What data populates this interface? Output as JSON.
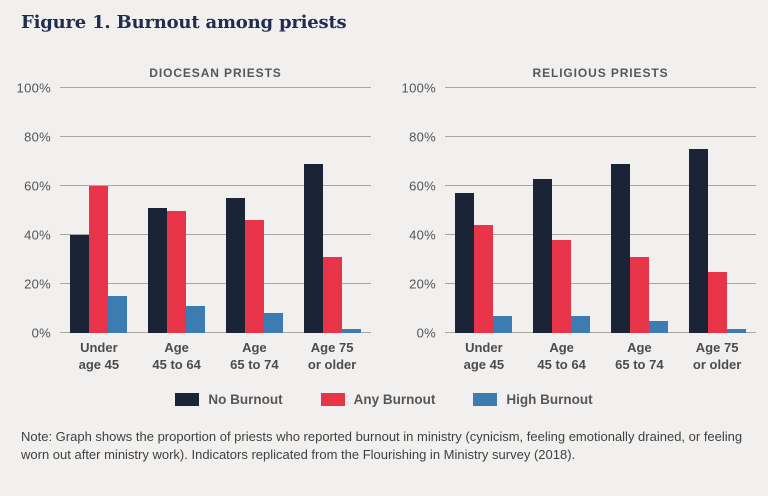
{
  "title": "Figure 1. Burnout among priests",
  "note": "Note: Graph shows the proportion of priests who reported burnout in ministry (cynicism, feeling emotionally drained, or feeling worn out after ministry work). Indicators replicated from the Flourishing in Ministry survey (2018).",
  "colors": {
    "background": "#f2f0ee",
    "title_navy": "#202c50",
    "gridline": "#a9a7a5",
    "no_burnout": "#1b2336",
    "any_burnout": "#e73449",
    "high_burnout": "#3d7cb2"
  },
  "legend": {
    "items": [
      {
        "label": "No Burnout",
        "color": "#1b2336"
      },
      {
        "label": "Any Burnout",
        "color": "#e73449"
      },
      {
        "label": "High Burnout",
        "color": "#3d7cb2"
      }
    ]
  },
  "chart_data": [
    {
      "type": "bar",
      "title": "DIOCESAN PRIESTS",
      "categories": [
        "Under\nage 45",
        "Age\n45 to 64",
        "Age\n65 to 74",
        "Age 75\nor older"
      ],
      "series": [
        {
          "name": "No Burnout",
          "color": "#1b2336",
          "values": [
            40,
            51,
            55,
            69
          ]
        },
        {
          "name": "Any Burnout",
          "color": "#e73449",
          "values": [
            60,
            50,
            46,
            31
          ]
        },
        {
          "name": "High Burnout",
          "color": "#3d7cb2",
          "values": [
            15,
            11,
            8,
            1.5
          ]
        }
      ],
      "ylim": [
        0,
        100
      ],
      "ytick_labels": [
        "0%",
        "20%",
        "40%",
        "60%",
        "80%",
        "100%"
      ],
      "grid": true,
      "legend_position": "bottom-shared"
    },
    {
      "type": "bar",
      "title": "RELIGIOUS PRIESTS",
      "categories": [
        "Under\nage 45",
        "Age\n45 to 64",
        "Age\n65 to 74",
        "Age 75\nor older"
      ],
      "series": [
        {
          "name": "No Burnout",
          "color": "#1b2336",
          "values": [
            57,
            63,
            69,
            75
          ]
        },
        {
          "name": "Any Burnout",
          "color": "#e73449",
          "values": [
            44,
            38,
            31,
            25
          ]
        },
        {
          "name": "High Burnout",
          "color": "#3d7cb2",
          "values": [
            7,
            7,
            5,
            1.5
          ]
        }
      ],
      "ylim": [
        0,
        100
      ],
      "ytick_labels": [
        "0%",
        "20%",
        "40%",
        "60%",
        "80%",
        "100%"
      ],
      "grid": true,
      "legend_position": "bottom-shared"
    }
  ]
}
